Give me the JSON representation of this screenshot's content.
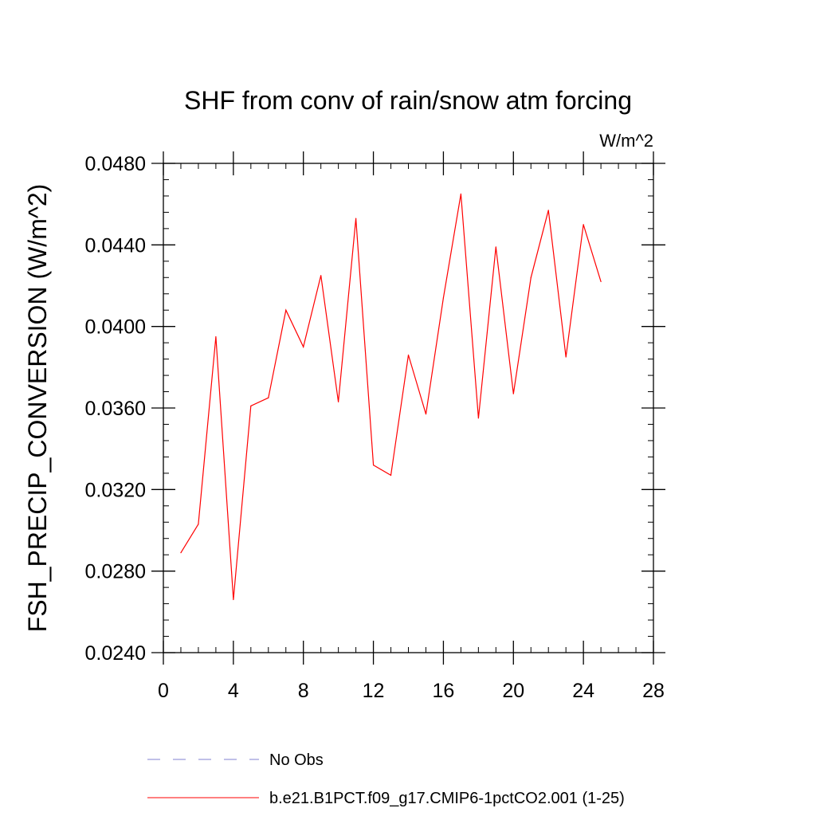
{
  "chart_data": {
    "type": "line",
    "title": "SHF from conv of rain/snow atm forcing",
    "units_label": "W/m^2",
    "xlabel": "",
    "ylabel": "FSH_PRECIP_CONVERSION  (W/m^2)",
    "xlim": [
      0,
      28
    ],
    "ylim": [
      0.024,
      0.048
    ],
    "xticks": [
      0,
      4,
      8,
      12,
      16,
      20,
      24,
      28
    ],
    "xtick_labels": [
      "0",
      "4",
      "8",
      "12",
      "16",
      "20",
      "24",
      "28"
    ],
    "yticks": [
      0.024,
      0.028,
      0.032,
      0.036,
      0.04,
      0.044,
      0.048
    ],
    "ytick_labels": [
      "0.0240",
      "0.0280",
      "0.0320",
      "0.0360",
      "0.0400",
      "0.0440",
      "0.0480"
    ],
    "grid": false,
    "legend_position": "bottom",
    "legend": [
      {
        "label": "No Obs",
        "color": "#8080d0",
        "style": "dashed"
      },
      {
        "label": "b.e21.B1PCT.f09_g17.CMIP6-1pctCO2.001 (1-25)",
        "color": "#ff0000",
        "style": "solid"
      }
    ],
    "series": [
      {
        "name": "b.e21.B1PCT.f09_g17.CMIP6-1pctCO2.001 (1-25)",
        "color": "#ff0000",
        "x": [
          1,
          2,
          3,
          4,
          5,
          6,
          7,
          8,
          9,
          10,
          11,
          12,
          13,
          14,
          15,
          16,
          17,
          18,
          19,
          20,
          21,
          22,
          23,
          24,
          25
        ],
        "y": [
          0.0289,
          0.0303,
          0.0395,
          0.0266,
          0.0361,
          0.0365,
          0.0408,
          0.039,
          0.0425,
          0.0363,
          0.0453,
          0.0332,
          0.0327,
          0.0386,
          0.0357,
          0.0414,
          0.0465,
          0.0355,
          0.0439,
          0.0367,
          0.0424,
          0.0457,
          0.0385,
          0.045,
          0.0422
        ]
      }
    ]
  }
}
